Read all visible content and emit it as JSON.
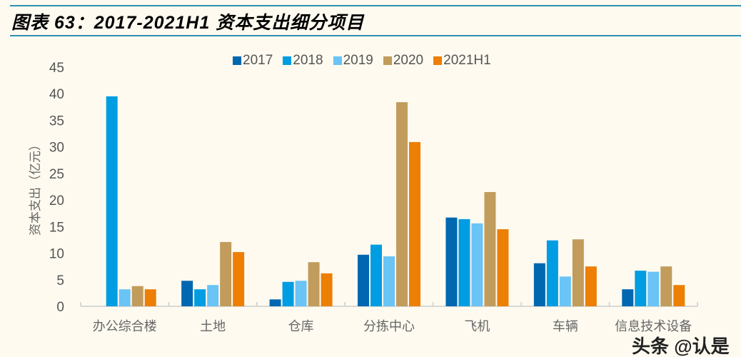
{
  "title": "图表 63：2017-2021H1 资本支出细分项目",
  "watermark": "头条 @认是",
  "chart_data": {
    "type": "bar",
    "title": "",
    "xlabel": "",
    "ylabel": "资本支出（亿元）",
    "ylim": [
      0,
      45
    ],
    "yticks": [
      "0",
      "5",
      "10",
      "15",
      "20",
      "25",
      "30",
      "35",
      "40",
      "45"
    ],
    "grid": false,
    "legend_position": "top",
    "categories": [
      "办公综合楼",
      "土地",
      "仓库",
      "分拣中心",
      "飞机",
      "车辆",
      "信息技术设备"
    ],
    "series": [
      {
        "name": "2017",
        "color": "#0067b1",
        "values": [
          0,
          4.8,
          1.3,
          9.7,
          16.7,
          8.1,
          3.2
        ]
      },
      {
        "name": "2018",
        "color": "#019de3",
        "values": [
          39.5,
          3.2,
          4.6,
          11.6,
          16.4,
          12.4,
          6.7
        ]
      },
      {
        "name": "2019",
        "color": "#6ac4f5",
        "values": [
          3.2,
          4.0,
          4.8,
          9.4,
          15.6,
          5.6,
          6.5
        ]
      },
      {
        "name": "2020",
        "color": "#c19c5c",
        "values": [
          3.8,
          12.1,
          8.3,
          38.4,
          21.5,
          12.6,
          7.5
        ]
      },
      {
        "name": "2021H1",
        "color": "#ec7f04",
        "values": [
          3.2,
          10.2,
          6.2,
          30.9,
          14.5,
          7.5,
          4.0
        ]
      }
    ]
  }
}
